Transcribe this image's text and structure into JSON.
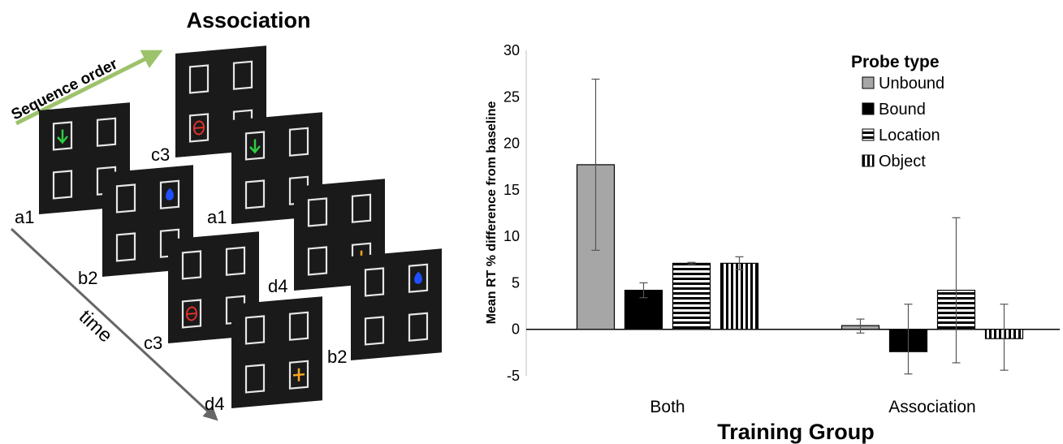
{
  "figure": {
    "left_panel": {
      "title": "Association",
      "sequence_arrow_label": "Sequence order",
      "time_arrow_label": "time",
      "colors": {
        "screen": "#1a1a1a",
        "box": "#e6e6e6",
        "seq_arrow": "#9cc36b",
        "time_arrow": "#666666",
        "green": "#2ecc40",
        "blue": "#1f4fff",
        "red": "#e0302a",
        "orange": "#f5a623"
      },
      "frames": [
        {
          "label": "a1",
          "stimulus": "down-arrow-icon",
          "cell": 0,
          "color": "green"
        },
        {
          "label": "b2",
          "stimulus": "blue-drop-icon",
          "cell": 1,
          "color": "blue"
        },
        {
          "label": "c3",
          "stimulus": "red-theta-icon",
          "cell": 2,
          "color": "red"
        },
        {
          "label": "d4",
          "stimulus": "plus-icon",
          "cell": 3,
          "color": "orange"
        },
        {
          "label": "c3",
          "stimulus": "red-theta-icon",
          "cell": 2,
          "color": "red"
        },
        {
          "label": "a1",
          "stimulus": "down-arrow-icon",
          "cell": 0,
          "color": "green"
        },
        {
          "label": "d4",
          "stimulus": "plus-icon",
          "cell": 3,
          "color": "orange"
        },
        {
          "label": "b2",
          "stimulus": "blue-drop-icon",
          "cell": 1,
          "color": "blue"
        }
      ]
    },
    "chart_data": {
      "type": "bar",
      "title": "",
      "xlabel": "Training Group",
      "ylabel": "Mean RT % difference from baseline",
      "ylim": [
        -5,
        30
      ],
      "yticks": [
        30,
        25,
        20,
        15,
        10,
        5,
        0,
        -5
      ],
      "categories": [
        "Both",
        "Association"
      ],
      "legend_title": "Probe type",
      "legend_position": "top-right",
      "grid": false,
      "series": [
        {
          "name": "Unbound",
          "pattern": "solid-gray",
          "color": "#a6a6a6",
          "values": [
            17.7,
            0.4
          ],
          "err_low": [
            8.5,
            -0.4
          ],
          "err_high": [
            26.9,
            1.1
          ]
        },
        {
          "name": "Bound",
          "pattern": "solid-black",
          "color": "#000000",
          "values": [
            4.2,
            -2.4
          ],
          "err_low": [
            3.4,
            -4.8
          ],
          "err_high": [
            5.0,
            2.7
          ]
        },
        {
          "name": "Location",
          "pattern": "horizontal-stripes",
          "color": "#000000",
          "values": [
            7.1,
            4.2
          ],
          "err_low": [
            7.0,
            -3.6
          ],
          "err_high": [
            7.2,
            12.0
          ]
        },
        {
          "name": "Object",
          "pattern": "vertical-stripes",
          "color": "#000000",
          "values": [
            7.1,
            -1.0
          ],
          "err_low": [
            6.4,
            -4.4
          ],
          "err_high": [
            7.8,
            2.7
          ]
        }
      ]
    }
  }
}
